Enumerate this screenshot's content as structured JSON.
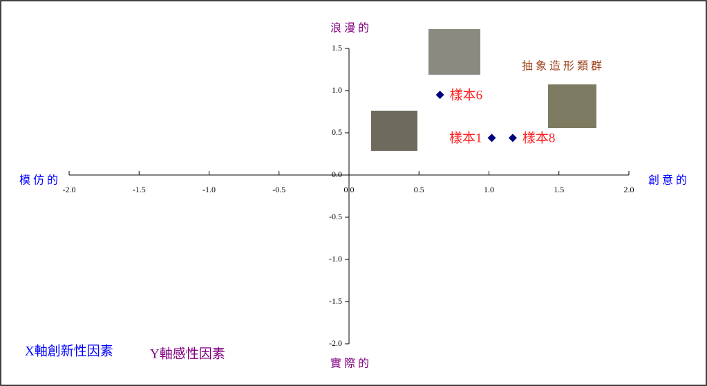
{
  "chart_data": {
    "type": "scatter",
    "ylabel_top": "浪漫的",
    "ylabel_bottom": "實際的",
    "xlabel_left": "模仿的",
    "xlabel_right": "創意的",
    "annotation": "抽象造形類群",
    "footnotes": [
      "X軸創新性因素",
      "Y軸感性因素"
    ],
    "point_labels": [
      "樣本6",
      "樣本1",
      "樣本8"
    ],
    "x": [
      0.65,
      1.02,
      1.17
    ],
    "values": [
      0.95,
      0.44,
      0.44
    ],
    "color": "#000080",
    "label_color": "#ff2020",
    "xlim": [
      -2,
      2
    ],
    "ylim": [
      -2,
      1.5
    ],
    "xticks": [
      {
        "value": -2,
        "label": "-2.0"
      },
      -1.5,
      {
        "value": -1,
        "label": "-1.0"
      },
      -0.5,
      {
        "value": 0,
        "label": "0.0"
      },
      0.5,
      {
        "value": 1,
        "label": "1.0"
      },
      1.5,
      {
        "value": 2,
        "label": "2.0"
      }
    ],
    "yticks": [
      {
        "value": -2,
        "label": "-2.0"
      },
      -1.5,
      {
        "value": -1,
        "label": "-1.0"
      },
      -0.5,
      {
        "value": 0,
        "label": "0.0"
      },
      0.5,
      {
        "value": 1,
        "label": "1.0"
      },
      1.5
    ]
  }
}
